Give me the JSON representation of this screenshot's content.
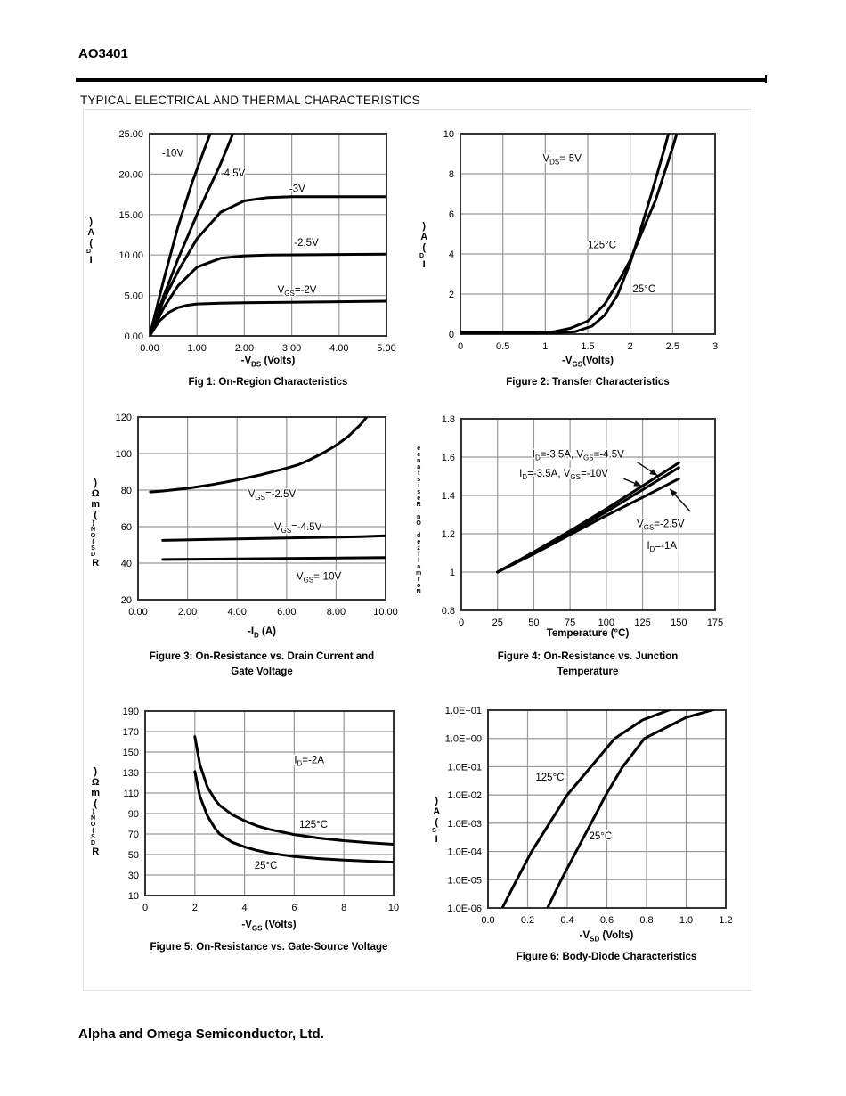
{
  "page": {
    "part_number": "AO3401",
    "section_title": "TYPICAL ELECTRICAL AND THERMAL CHARACTERISTICS",
    "footer": "Alpha and Omega Semiconductor, Ltd."
  },
  "chart_data": [
    {
      "type": "line",
      "title": "Fig 1: On-Region Characteristics",
      "title2": "",
      "xlabel": "-V_{DS} (Volts)",
      "ylabel": "ID (A)",
      "ylabel_stacked": ")A(_{D}I",
      "xlim": [
        0,
        5
      ],
      "ylim": [
        0,
        25
      ],
      "ylog": false,
      "xticks": {
        "values": [
          0,
          1,
          2,
          3,
          4,
          5
        ],
        "labels": [
          "0.00",
          "1.00",
          "2.00",
          "3.00",
          "4.00",
          "5.00"
        ]
      },
      "yticks": {
        "values": [
          0,
          5,
          10,
          15,
          20,
          25
        ],
        "labels": [
          "0.00",
          "5.00",
          "10.00",
          "15.00",
          "20.00",
          "25.00"
        ]
      },
      "series": [
        {
          "name": "VGS=-10V",
          "points": [
            [
              0,
              0
            ],
            [
              0.3,
              7
            ],
            [
              0.6,
              13.5
            ],
            [
              0.9,
              19
            ],
            [
              1.15,
              23
            ],
            [
              1.32,
              25.6
            ]
          ]
        },
        {
          "name": "VGS=-4.5V",
          "points": [
            [
              0,
              0
            ],
            [
              0.3,
              5
            ],
            [
              0.6,
              9.5
            ],
            [
              1,
              15
            ],
            [
              1.5,
              21.3
            ],
            [
              1.8,
              25.6
            ]
          ]
        },
        {
          "name": "VGS=-3V",
          "points": [
            [
              0,
              0
            ],
            [
              0.3,
              4.5
            ],
            [
              0.6,
              8
            ],
            [
              1,
              12
            ],
            [
              1.5,
              15.3
            ],
            [
              2,
              16.7
            ],
            [
              2.5,
              17.1
            ],
            [
              3,
              17.2
            ],
            [
              5,
              17.2
            ]
          ]
        },
        {
          "name": "VGS=-2.5V",
          "points": [
            [
              0,
              0
            ],
            [
              0.3,
              3.5
            ],
            [
              0.6,
              6.2
            ],
            [
              1,
              8.5
            ],
            [
              1.5,
              9.6
            ],
            [
              2,
              9.9
            ],
            [
              2.5,
              10
            ],
            [
              5,
              10.1
            ]
          ]
        },
        {
          "name": "VGS=-2V",
          "points": [
            [
              0,
              0
            ],
            [
              0.2,
              1.8
            ],
            [
              0.4,
              2.9
            ],
            [
              0.6,
              3.5
            ],
            [
              0.8,
              3.8
            ],
            [
              1,
              3.95
            ],
            [
              1.5,
              4.05
            ],
            [
              2,
              4.1
            ],
            [
              5,
              4.3
            ]
          ]
        }
      ],
      "annotations": [
        {
          "t": "-10V",
          "x": 0.26,
          "y": 22.2
        },
        {
          "t": "-4.5V",
          "x": 1.5,
          "y": 19.7
        },
        {
          "t": "-3V",
          "x": 2.95,
          "y": 17.8
        },
        {
          "t": "-2.5V",
          "x": 3.05,
          "y": 11.1
        },
        {
          "t": "V_{GS}=-2V",
          "x": 2.7,
          "y": 5.3
        }
      ]
    },
    {
      "type": "line",
      "title": "Figure 2: Transfer Characteristics",
      "title2": "",
      "xlabel": "-V_{GS}(Volts)",
      "ylabel": "ID (A)",
      "ylabel_stacked": ")A(_{D}I",
      "xlim": [
        0,
        3
      ],
      "ylim": [
        0,
        10
      ],
      "ylog": false,
      "xticks": {
        "values": [
          0,
          0.5,
          1,
          1.5,
          2,
          2.5,
          3
        ],
        "labels": [
          "0",
          "0.5",
          "1",
          "1.5",
          "2",
          "2.5",
          "3"
        ]
      },
      "yticks": {
        "values": [
          0,
          2,
          4,
          6,
          8,
          10
        ],
        "labels": [
          "0",
          "2",
          "4",
          "6",
          "8",
          "10"
        ]
      },
      "series": [
        {
          "name": "125°C",
          "points": [
            [
              0,
              0.07
            ],
            [
              0.9,
              0.07
            ],
            [
              1.1,
              0.12
            ],
            [
              1.3,
              0.3
            ],
            [
              1.5,
              0.65
            ],
            [
              1.7,
              1.5
            ],
            [
              1.9,
              2.9
            ],
            [
              2.0,
              3.7
            ],
            [
              2.1,
              4.7
            ],
            [
              2.3,
              6.7
            ],
            [
              2.5,
              9.3
            ],
            [
              2.57,
              10.3
            ]
          ]
        },
        {
          "name": "25°C",
          "points": [
            [
              0,
              0.07
            ],
            [
              1.15,
              0.07
            ],
            [
              1.35,
              0.12
            ],
            [
              1.55,
              0.4
            ],
            [
              1.7,
              0.95
            ],
            [
              1.85,
              1.95
            ],
            [
              2.0,
              3.55
            ],
            [
              2.1,
              4.9
            ],
            [
              2.25,
              7
            ],
            [
              2.4,
              9.2
            ],
            [
              2.47,
              10.3
            ]
          ]
        }
      ],
      "annotations": [
        {
          "t": "V_{DS}=-5V",
          "x": 0.97,
          "y": 8.6
        },
        {
          "t": "125°C",
          "x": 1.5,
          "y": 4.3
        },
        {
          "t": "25°C",
          "x": 2.03,
          "y": 2.1
        }
      ]
    },
    {
      "type": "line",
      "title": "Figure 3: On-Resistance vs. Drain Current and",
      "title2": "Gate Voltage",
      "xlabel": "-I_{D} (A)",
      "ylabel": "RDS(ON) (mΩ)",
      "ylabel_stacked": ")Ωm(_{)NO(SD}R",
      "xlim": [
        0,
        10
      ],
      "ylim": [
        20,
        120
      ],
      "ylog": false,
      "xticks": {
        "values": [
          0,
          2,
          4,
          6,
          8,
          10
        ],
        "labels": [
          "0.00",
          "2.00",
          "4.00",
          "6.00",
          "8.00",
          "10.00"
        ]
      },
      "yticks": {
        "values": [
          20,
          40,
          60,
          80,
          100,
          120
        ],
        "labels": [
          "20",
          "40",
          "60",
          "80",
          "100",
          "120"
        ]
      },
      "series": [
        {
          "name": "VGS=-2.5V",
          "points": [
            [
              0.5,
              79
            ],
            [
              1,
              79.5
            ],
            [
              2,
              81
            ],
            [
              3,
              83
            ],
            [
              4,
              85.5
            ],
            [
              5,
              88.5
            ],
            [
              6,
              92
            ],
            [
              6.5,
              94
            ],
            [
              7,
              97
            ],
            [
              7.5,
              100.5
            ],
            [
              8,
              104.5
            ],
            [
              8.5,
              109.5
            ],
            [
              9,
              116
            ],
            [
              9.3,
              121
            ],
            [
              9.4,
              124
            ]
          ]
        },
        {
          "name": "VGS=-4.5V",
          "points": [
            [
              1,
              52.5
            ],
            [
              3,
              53
            ],
            [
              5,
              53.5
            ],
            [
              7,
              54
            ],
            [
              9,
              54.5
            ],
            [
              10,
              55
            ]
          ]
        },
        {
          "name": "VGS=-10V",
          "points": [
            [
              1,
              42
            ],
            [
              4,
              42.3
            ],
            [
              7,
              42.7
            ],
            [
              10,
              43
            ]
          ]
        }
      ],
      "annotations": [
        {
          "t": "V_{GS}=-2.5V",
          "x": 4.45,
          "y": 76
        },
        {
          "t": "V_{GS}=-4.5V",
          "x": 5.5,
          "y": 58
        },
        {
          "t": "V_{GS}=-10V",
          "x": 6.4,
          "y": 31
        }
      ]
    },
    {
      "type": "line",
      "title": "Figure 4: On-Resistance vs. Junction",
      "title2": "Temperature",
      "xlabel": "Temperature (°C)",
      "ylabel": "Normalized On-Resistance",
      "ylabel_stacked": "ecnatsiseR-nO dezilamroN",
      "xlim": [
        0,
        175
      ],
      "ylim": [
        0.8,
        1.8
      ],
      "ylog": false,
      "xticks": {
        "values": [
          0,
          25,
          50,
          75,
          100,
          125,
          150,
          175
        ],
        "labels": [
          "0",
          "25",
          "50",
          "75",
          "100",
          "125",
          "150",
          "175"
        ]
      },
      "yticks": {
        "values": [
          0.8,
          1,
          1.2,
          1.4,
          1.6,
          1.8
        ],
        "labels": [
          "0.8",
          "1",
          "1.2",
          "1.4",
          "1.6",
          "1.8"
        ]
      },
      "series": [
        {
          "name": "ID=-3.5A, VGS=-4.5V",
          "points": [
            [
              25,
              1.0
            ],
            [
              50,
              1.105
            ],
            [
              75,
              1.215
            ],
            [
              100,
              1.33
            ],
            [
              125,
              1.45
            ],
            [
              150,
              1.57
            ]
          ]
        },
        {
          "name": "ID=-3.5A, VGS=-10V",
          "points": [
            [
              25,
              1.0
            ],
            [
              50,
              1.1
            ],
            [
              75,
              1.205
            ],
            [
              100,
              1.315
            ],
            [
              125,
              1.43
            ],
            [
              150,
              1.545
            ]
          ]
        },
        {
          "name": "VGS=-2.5V, ID=-1A",
          "points": [
            [
              25,
              1.0
            ],
            [
              50,
              1.095
            ],
            [
              75,
              1.195
            ],
            [
              100,
              1.295
            ],
            [
              125,
              1.39
            ],
            [
              150,
              1.487
            ]
          ]
        }
      ],
      "annotations": [
        {
          "t": "I_{D}=-3.5A, V_{GS}=-4.5V",
          "x": 49,
          "y": 1.597
        },
        {
          "t": "I_{D}=-3.5A, V_{GS}=-10V",
          "x": 40,
          "y": 1.497
        },
        {
          "t": "V_{GS}=-2.5V",
          "x": 121,
          "y": 1.235
        },
        {
          "t": "I_{D}=-1A",
          "x": 128,
          "y": 1.12
        }
      ],
      "arrows": [
        {
          "x1": 121,
          "y1": 1.575,
          "x2": 135,
          "y2": 1.505
        },
        {
          "x1": 112,
          "y1": 1.487,
          "x2": 124,
          "y2": 1.45
        },
        {
          "x1": 158,
          "y1": 1.315,
          "x2": 144,
          "y2": 1.432
        }
      ]
    },
    {
      "type": "line",
      "title": "Figure 5: On-Resistance vs. Gate-Source Voltage",
      "title2": "",
      "xlabel": "-V_{GS} (Volts)",
      "ylabel": "RDS(ON) (mΩ)",
      "ylabel_stacked": ")Ωm(_{)NO(SD}R",
      "xlim": [
        0,
        10
      ],
      "ylim": [
        10,
        190
      ],
      "ylog": false,
      "xticks": {
        "values": [
          0,
          2,
          4,
          6,
          8,
          10
        ],
        "labels": [
          "0",
          "2",
          "4",
          "6",
          "8",
          "10"
        ]
      },
      "yticks": {
        "values": [
          10,
          30,
          50,
          70,
          90,
          110,
          130,
          150,
          170,
          190
        ],
        "labels": [
          "10",
          "30",
          "50",
          "70",
          "90",
          "110",
          "130",
          "150",
          "170",
          "190"
        ]
      },
      "series": [
        {
          "name": "125°C",
          "points": [
            [
              2,
              165
            ],
            [
              2.2,
              138
            ],
            [
              2.5,
              116
            ],
            [
              2.8,
              104
            ],
            [
              3,
              98
            ],
            [
              3.5,
              89
            ],
            [
              4,
              83
            ],
            [
              4.5,
              78
            ],
            [
              5,
              74.5
            ],
            [
              6,
              69.5
            ],
            [
              7,
              66
            ],
            [
              8,
              63.5
            ],
            [
              9,
              61.5
            ],
            [
              10,
              60
            ]
          ]
        },
        {
          "name": "25°C",
          "points": [
            [
              2,
              131
            ],
            [
              2.2,
              107
            ],
            [
              2.5,
              88
            ],
            [
              2.8,
              76
            ],
            [
              3,
              70
            ],
            [
              3.5,
              62
            ],
            [
              4,
              57.5
            ],
            [
              4.5,
              54
            ],
            [
              5,
              51.5
            ],
            [
              6,
              48
            ],
            [
              7,
              46
            ],
            [
              8,
              44.5
            ],
            [
              9,
              43.5
            ],
            [
              10,
              42.5
            ]
          ]
        }
      ],
      "annotations": [
        {
          "t": "I_{D}=-2A",
          "x": 6.0,
          "y": 139
        },
        {
          "t": "125°C",
          "x": 6.2,
          "y": 76
        },
        {
          "t": "25°C",
          "x": 4.4,
          "y": 36
        }
      ]
    },
    {
      "type": "line",
      "title": "Figure 6: Body-Diode Characteristics",
      "title2": "",
      "xlabel": "-V_{SD} (Volts)",
      "ylabel": "IS (A)",
      "ylabel_stacked": ")A(_{S}I",
      "xlim": [
        0,
        1.2
      ],
      "ylim": [
        1e-06,
        10
      ],
      "ylog": true,
      "xticks": {
        "values": [
          0,
          0.2,
          0.4,
          0.6,
          0.8,
          1.0,
          1.2
        ],
        "labels": [
          "0.0",
          "0.2",
          "0.4",
          "0.6",
          "0.8",
          "1.0",
          "1.2"
        ]
      },
      "yticks": {
        "values": [
          1e-06,
          1e-05,
          0.0001,
          0.001,
          0.01,
          0.1,
          1,
          10
        ],
        "labels": [
          "1.0E-06",
          "1.0E-05",
          "1.0E-04",
          "1.0E-03",
          "1.0E-02",
          "1.0E-01",
          "1.0E+00",
          "1.0E+01"
        ]
      },
      "series": [
        {
          "name": "125°C",
          "points": [
            [
              0.072,
              1e-06
            ],
            [
              0.145,
              1e-05
            ],
            [
              0.22,
              0.0001
            ],
            [
              0.31,
              0.001
            ],
            [
              0.4,
              0.01
            ],
            [
              0.52,
              0.1
            ],
            [
              0.64,
              1
            ],
            [
              0.78,
              4.5
            ],
            [
              0.92,
              10.5
            ]
          ]
        },
        {
          "name": "25°C",
          "points": [
            [
              0.3,
              1e-06
            ],
            [
              0.37,
              1e-05
            ],
            [
              0.445,
              0.0001
            ],
            [
              0.52,
              0.001
            ],
            [
              0.595,
              0.01
            ],
            [
              0.68,
              0.1
            ],
            [
              0.79,
              1
            ],
            [
              1.0,
              5.5
            ],
            [
              1.14,
              10.5
            ]
          ]
        }
      ],
      "annotations": [
        {
          "t": "125°C",
          "x": 0.24,
          "y": 0.032
        },
        {
          "t": "25°C",
          "x": 0.51,
          "y": 0.00027
        }
      ]
    }
  ]
}
